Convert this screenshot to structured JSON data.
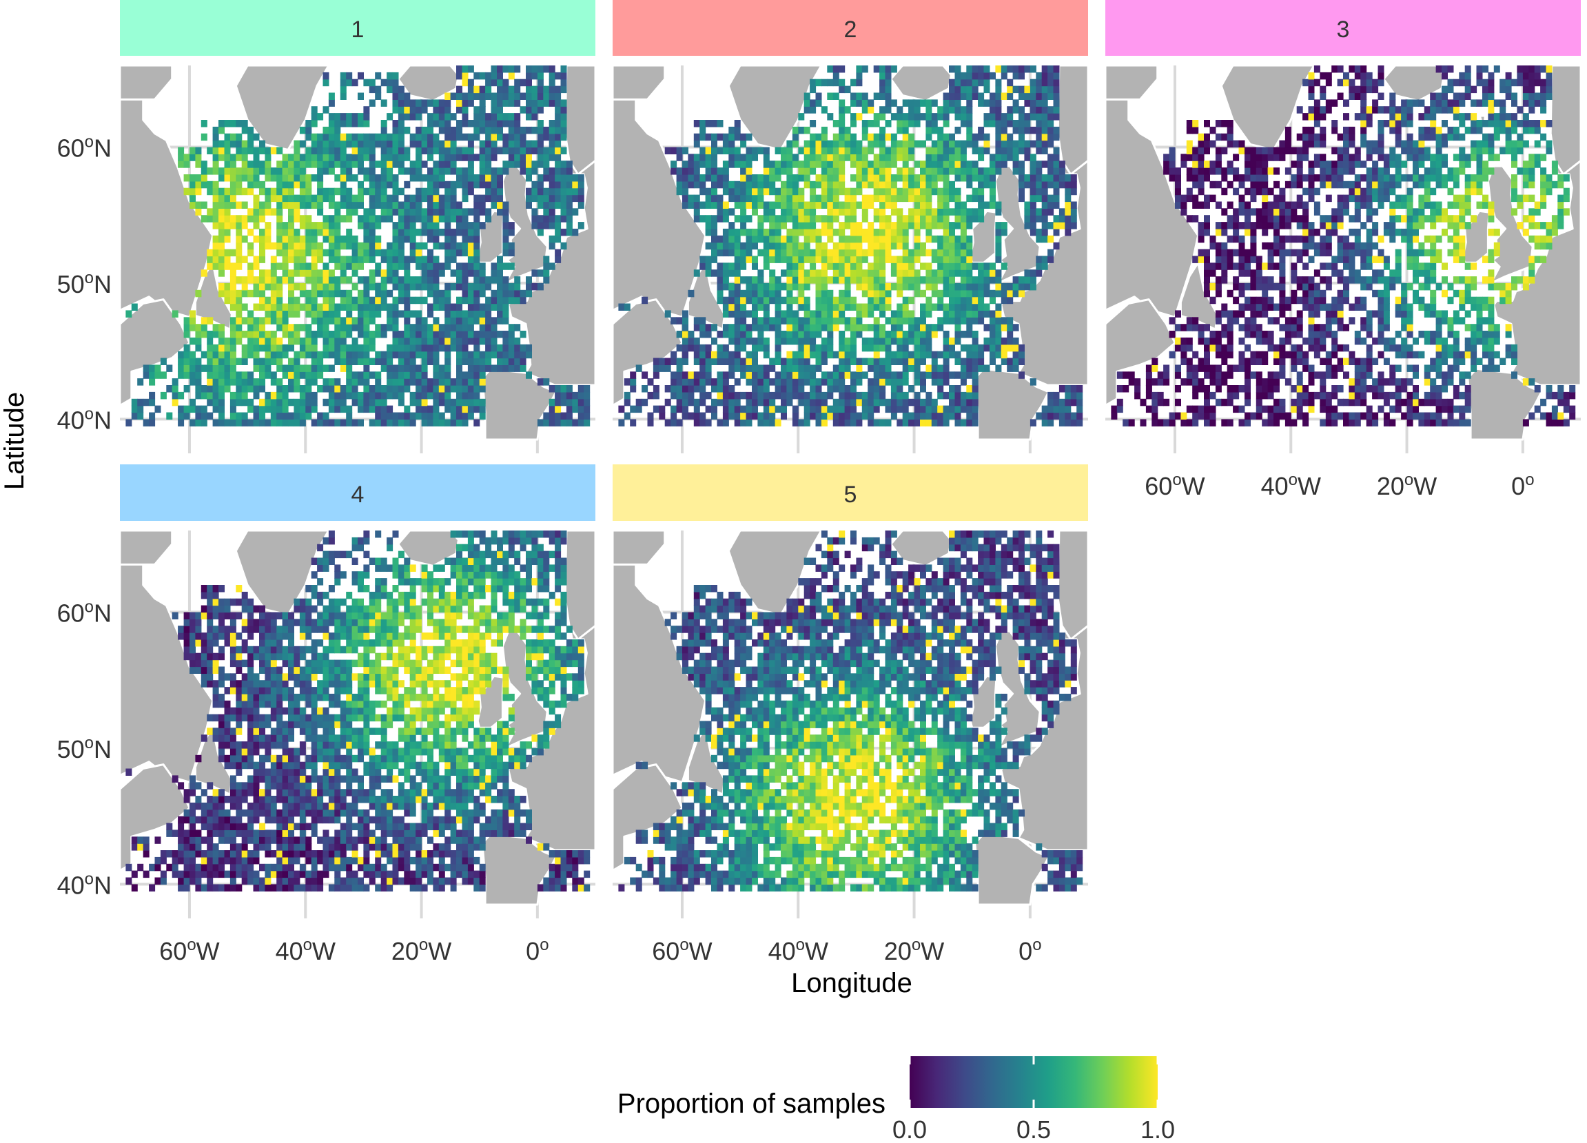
{
  "x_axis_label": "Longitude",
  "y_axis_label": "Latitude",
  "colors": {
    "land": "#b3b3b3",
    "coast": "#ffffff",
    "grid": "#d9d9d9",
    "text": "#333333",
    "viridis": [
      "#440154",
      "#482878",
      "#3e4a89",
      "#31688e",
      "#26828e",
      "#1f9e89",
      "#35b779",
      "#6ece58",
      "#b5de2b",
      "#fde725"
    ]
  },
  "chart_data": {
    "type": "heatmap",
    "facet_panels": [
      {
        "label": "1",
        "strip_color": "#99ffd6",
        "peak_lon": -52,
        "peak_lat": 52,
        "base": 0.35
      },
      {
        "label": "2",
        "strip_color": "#ff9b9b",
        "peak_lon": -28,
        "peak_lat": 54,
        "base": 0.25
      },
      {
        "label": "3",
        "strip_color": "#ff99f0",
        "peak_lon": -4,
        "peak_lat": 53,
        "base": 0.05
      },
      {
        "label": "4",
        "strip_color": "#99d6ff",
        "peak_lon": -15,
        "peak_lat": 56,
        "base": 0.15
      },
      {
        "label": "5",
        "strip_color": "#fff099",
        "peak_lon": -30,
        "peak_lat": 46,
        "base": 0.2
      }
    ],
    "x_range": [
      -72,
      10
    ],
    "y_range": [
      38.5,
      66
    ],
    "x_ticks": [
      {
        "value": -60,
        "num": "60",
        "sup": "o",
        "suffix": "W"
      },
      {
        "value": -40,
        "num": "40",
        "sup": "o",
        "suffix": "W"
      },
      {
        "value": -20,
        "num": "20",
        "sup": "o",
        "suffix": "W"
      },
      {
        "value": 0,
        "num": "0",
        "sup": "o",
        "suffix": ""
      }
    ],
    "y_ticks": [
      {
        "value": 40,
        "num": "40",
        "sup": "o",
        "suffix": "N"
      },
      {
        "value": 50,
        "num": "50",
        "sup": "o",
        "suffix": "N"
      },
      {
        "value": 60,
        "num": "60",
        "sup": "o",
        "suffix": "N"
      }
    ],
    "legend": {
      "title": "Proportion of samples",
      "position": "bottom",
      "range": [
        0,
        1
      ],
      "ticks": [
        {
          "value": 0.0,
          "label": "0.0"
        },
        {
          "value": 0.5,
          "label": "0.5"
        },
        {
          "value": 1.0,
          "label": "1.0"
        }
      ]
    },
    "cell_size_degrees": {
      "lon": 1,
      "lat": 0.5
    }
  }
}
